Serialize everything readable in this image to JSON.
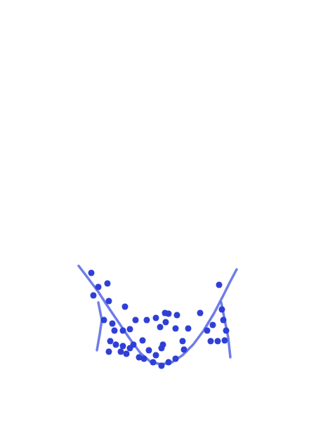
{
  "chart_data": {
    "type": "scatter",
    "xlim": [
      0,
      450
    ],
    "ylim": [
      0,
      600
    ],
    "xticks": [],
    "yticks": [],
    "grid": false,
    "tick_labels": false,
    "series": [
      {
        "type": "line",
        "color": "#5566e4",
        "line_style": "solid",
        "x": [
          112,
          125,
          140,
          155,
          170,
          185,
          200,
          215,
          230,
          245,
          260,
          275,
          290,
          305,
          318,
          328,
          337
        ],
        "values": [
          222,
          205,
          185,
          162,
          140,
          118,
          98,
          85,
          82,
          85,
          95,
          110,
          130,
          155,
          180,
          200,
          217
        ]
      },
      {
        "type": "line",
        "color": "#5566e4",
        "line_style": "solid",
        "x": [
          140,
          145,
          142,
          138
        ],
        "values": [
          170,
          145,
          125,
          102
        ]
      },
      {
        "type": "line",
        "color": "#5566e4",
        "line_style": "solid",
        "x": [
          315,
          320,
          325,
          328
        ],
        "values": [
          170,
          145,
          120,
          92
        ]
      },
      {
        "type": "scatter",
        "color": "#2f3fd6",
        "marker": "o",
        "x": [
          130,
          140,
          153,
          133,
          155,
          178,
          148,
          160,
          163,
          175,
          185,
          157,
          165,
          175,
          185,
          190,
          155,
          172,
          180,
          203,
          212,
          222,
          230,
          232,
          209,
          222,
          235,
          240,
          228,
          236,
          252,
          250,
          268,
          260,
          262,
          285,
          295,
          300,
          303,
          312,
          316,
          318,
          322,
          320,
          310,
          198,
          205,
          218,
          240,
          250,
          193,
          230
        ],
        "values": [
          212,
          192,
          197,
          180,
          172,
          164,
          145,
          140,
          130,
          130,
          132,
          115,
          110,
          108,
          105,
          110,
          100,
          100,
          97,
          116,
          102,
          95,
          105,
          110,
          145,
          148,
          155,
          154,
          135,
          142,
          152,
          133,
          133,
          115,
          103,
          155,
          130,
          115,
          138,
          195,
          160,
          145,
          130,
          116,
          115,
          92,
          90,
          85,
          85,
          90,
          145,
          80
        ]
      }
    ]
  }
}
